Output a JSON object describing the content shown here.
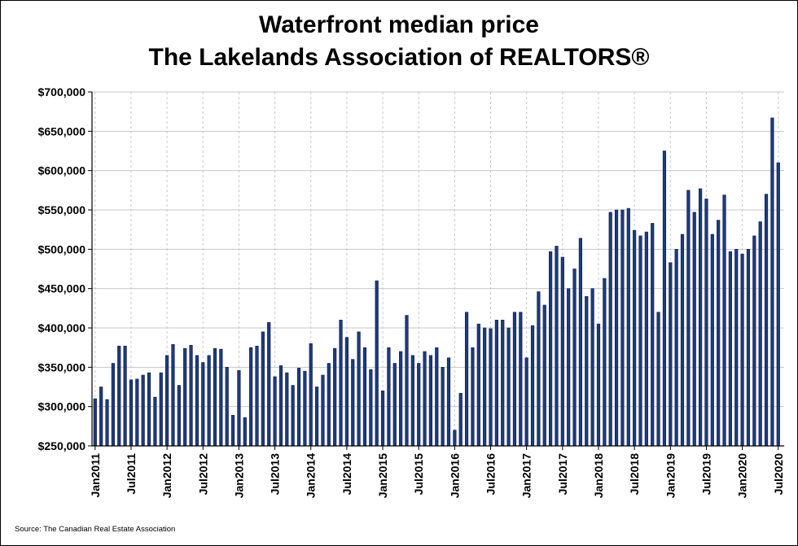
{
  "chart_data": {
    "type": "bar",
    "title": "Waterfront median price",
    "subtitle": "The Lakelands Association of REALTORS®",
    "xlabel": "",
    "ylabel": "",
    "ylim": [
      250000,
      700000
    ],
    "y_ticks": [
      "$250,000",
      "$300,000",
      "$350,000",
      "$400,000",
      "$450,000",
      "$500,000",
      "$550,000",
      "$600,000",
      "$650,000",
      "$700,000"
    ],
    "x_tick_labels": [
      "Jan2011",
      "Jul2011",
      "Jan2012",
      "Jul2012",
      "Jan2013",
      "Jul2013",
      "Jan2014",
      "Jul2014",
      "Jan2015",
      "Jul2015",
      "Jan2016",
      "Jul2016",
      "Jan2017",
      "Jul2017",
      "Jan2018",
      "Jul2018",
      "Jan2019",
      "Jul2019",
      "Jan2020",
      "Jul2020"
    ],
    "grid": true,
    "legend": "none",
    "bar_color": "#1f3a7a",
    "categories": [
      "Jan2011",
      "Feb2011",
      "Mar2011",
      "Apr2011",
      "May2011",
      "Jun2011",
      "Jul2011",
      "Aug2011",
      "Sep2011",
      "Oct2011",
      "Nov2011",
      "Dec2011",
      "Jan2012",
      "Feb2012",
      "Mar2012",
      "Apr2012",
      "May2012",
      "Jun2012",
      "Jul2012",
      "Aug2012",
      "Sep2012",
      "Oct2012",
      "Nov2012",
      "Dec2012",
      "Jan2013",
      "Feb2013",
      "Mar2013",
      "Apr2013",
      "May2013",
      "Jun2013",
      "Jul2013",
      "Aug2013",
      "Sep2013",
      "Oct2013",
      "Nov2013",
      "Dec2013",
      "Jan2014",
      "Feb2014",
      "Mar2014",
      "Apr2014",
      "May2014",
      "Jun2014",
      "Jul2014",
      "Aug2014",
      "Sep2014",
      "Oct2014",
      "Nov2014",
      "Dec2014",
      "Jan2015",
      "Feb2015",
      "Mar2015",
      "Apr2015",
      "May2015",
      "Jun2015",
      "Jul2015",
      "Aug2015",
      "Sep2015",
      "Oct2015",
      "Nov2015",
      "Dec2015",
      "Jan2016",
      "Feb2016",
      "Mar2016",
      "Apr2016",
      "May2016",
      "Jun2016",
      "Jul2016",
      "Aug2016",
      "Sep2016",
      "Oct2016",
      "Nov2016",
      "Dec2016",
      "Jan2017",
      "Feb2017",
      "Mar2017",
      "Apr2017",
      "May2017",
      "Jun2017",
      "Jul2017",
      "Aug2017",
      "Sep2017",
      "Oct2017",
      "Nov2017",
      "Dec2017",
      "Jan2018",
      "Feb2018",
      "Mar2018",
      "Apr2018",
      "May2018",
      "Jun2018",
      "Jul2018",
      "Aug2018",
      "Sep2018",
      "Oct2018",
      "Nov2018",
      "Dec2018",
      "Jan2019",
      "Feb2019",
      "Mar2019",
      "Apr2019",
      "May2019",
      "Jun2019",
      "Jul2019",
      "Aug2019",
      "Sep2019",
      "Oct2019",
      "Nov2019",
      "Dec2019",
      "Jan2020",
      "Feb2020",
      "Mar2020",
      "Apr2020",
      "May2020",
      "Jun2020",
      "Jul2020"
    ],
    "values": [
      310000,
      325000,
      309000,
      355000,
      377000,
      377000,
      334000,
      335000,
      340000,
      343000,
      312000,
      343000,
      365000,
      379000,
      327000,
      374000,
      378000,
      365000,
      356000,
      365000,
      374000,
      373000,
      350000,
      289000,
      346000,
      286000,
      375000,
      377000,
      395000,
      407000,
      338000,
      352000,
      343000,
      327000,
      349000,
      345000,
      380000,
      325000,
      340000,
      355000,
      374000,
      410000,
      388000,
      360000,
      395000,
      375000,
      347000,
      460000,
      320000,
      375000,
      355000,
      370000,
      416000,
      365000,
      355000,
      370000,
      365000,
      375000,
      350000,
      362000,
      270000,
      317000,
      420000,
      375000,
      405000,
      400000,
      399000,
      410000,
      410000,
      400000,
      420000,
      420000,
      362000,
      403000,
      446000,
      429000,
      497000,
      504000,
      490000,
      450000,
      475000,
      514000,
      440000,
      450000,
      405000,
      463000,
      547000,
      550000,
      550000,
      552000,
      524000,
      517000,
      522000,
      533000,
      420000,
      625000,
      483000,
      500000,
      519000,
      575000,
      547000,
      577000,
      564000,
      519000,
      537000,
      569000,
      497000,
      500000,
      494000,
      500000,
      517000,
      535000,
      570000,
      667000,
      610000
    ]
  },
  "source_note": "Source: The Canadian Real Estate Association"
}
